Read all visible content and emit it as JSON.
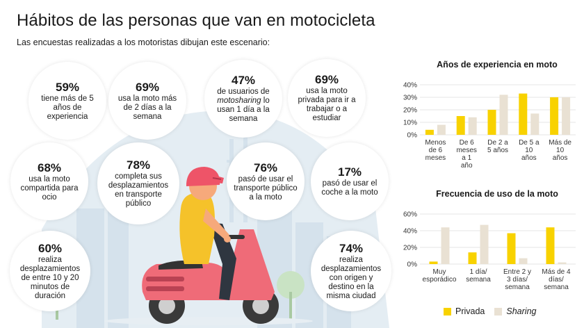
{
  "header": {
    "title": "Hábitos de las personas que van en motocicleta",
    "subtitle": "Las encuestas realizadas a los motoristas dibujan este escenario:"
  },
  "stats": [
    {
      "pct": "59%",
      "text": "tiene más de 5 años de experiencia"
    },
    {
      "pct": "69%",
      "text": "usa la moto más de 2 días a la semana"
    },
    {
      "pct": "47%",
      "text_before": "de usuarios de ",
      "text_em": "motosharing",
      "text_after": " lo usan 1 día a la semana"
    },
    {
      "pct": "69%",
      "text": "usa la moto privada para ir a trabajar o a estudiar"
    },
    {
      "pct": "68%",
      "text": "usa la moto compartida para ocio"
    },
    {
      "pct": "78%",
      "text": "completa sus desplazamientos en transporte público"
    },
    {
      "pct": "76%",
      "text": "pasó de usar el transporte público a la moto"
    },
    {
      "pct": "17%",
      "text": "pasó de usar el coche a la moto"
    },
    {
      "pct": "60%",
      "text": "realiza desplazamientos de entre 10 y 20 minutos de duración"
    },
    {
      "pct": "74%",
      "text": "realiza desplazamientos con origen y destino en la misma ciudad"
    }
  ],
  "colors": {
    "privada": "#f8d200",
    "sharing": "#e9e1d3",
    "grid": "#e5e5e5",
    "helmet": "#ee5468",
    "scooter": "#ef6b78",
    "shirt": "#f5c22a",
    "skin": "#f6a97b",
    "city": "#dde8f0"
  },
  "legend": {
    "privada": "Privada",
    "sharing": "Sharing"
  },
  "chart_data": [
    {
      "type": "bar",
      "title": "Años de experiencia en moto",
      "categories": [
        "Menos de 6 meses",
        "De 6 meses a 1 año",
        "De 2 a 5 años",
        "De 5 a 10 años",
        "Más de 10 años"
      ],
      "series": [
        {
          "name": "Privada",
          "values": [
            4,
            15,
            20,
            33,
            30
          ]
        },
        {
          "name": "Sharing",
          "values": [
            8,
            14,
            32,
            17,
            30
          ]
        }
      ],
      "yticks": [
        "0%",
        "10%",
        "20%",
        "30%",
        "40%"
      ],
      "ylim": [
        0,
        40
      ],
      "grid": true
    },
    {
      "type": "bar",
      "title": "Frecuencia de uso de la moto",
      "categories": [
        "Muy esporádico",
        "1 día/ semana",
        "Entre 2 y 3 días/ semana",
        "Más de 4 días/ semana"
      ],
      "series": [
        {
          "name": "Privada",
          "values": [
            3,
            14,
            37,
            44
          ]
        },
        {
          "name": "Sharing",
          "values": [
            44,
            47,
            7,
            2
          ]
        }
      ],
      "yticks": [
        "0%",
        "20%",
        "40%",
        "60%"
      ],
      "ylim": [
        0,
        60
      ],
      "grid": true
    }
  ]
}
